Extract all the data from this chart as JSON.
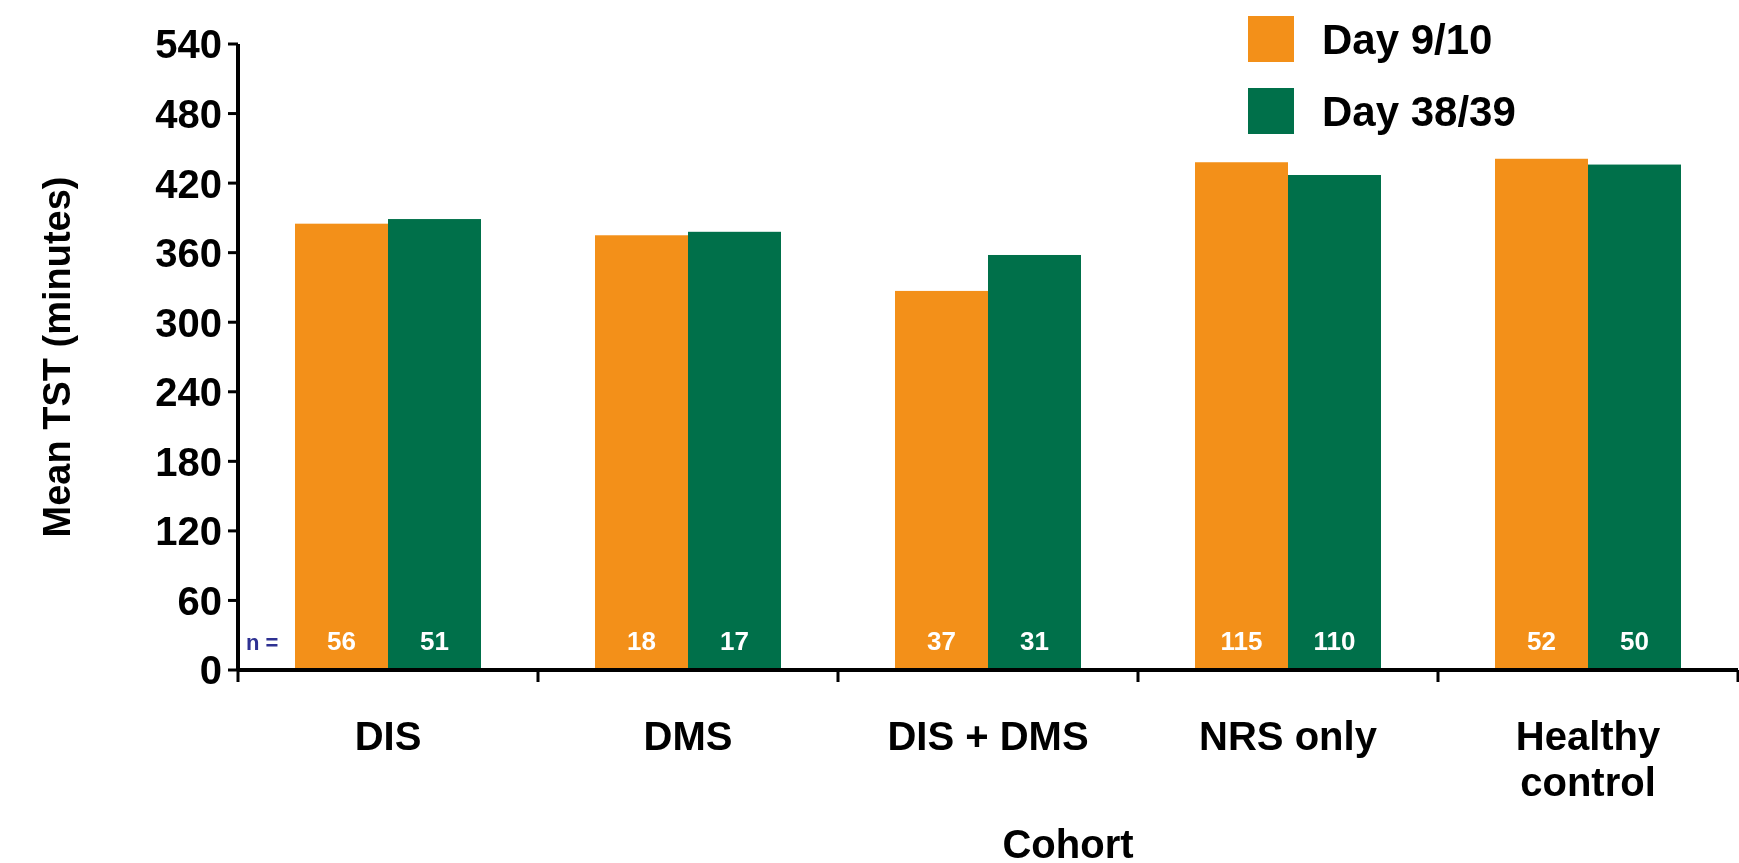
{
  "chart_data": {
    "type": "bar",
    "xlabel": "Cohort",
    "ylabel": "Mean TST (minutes)",
    "categories": [
      "DIS",
      "DMS",
      "DIS + DMS",
      "NRS only",
      "Healthy control"
    ],
    "series": [
      {
        "name": "Day 9/10",
        "color": "#f39019",
        "values": [
          385,
          375,
          327,
          438,
          441
        ]
      },
      {
        "name": "Day 38/39",
        "color": "#00704a",
        "values": [
          389,
          378,
          358,
          427,
          436
        ]
      }
    ],
    "ylim": [
      0,
      540
    ],
    "yticks": [
      0,
      60,
      120,
      180,
      240,
      300,
      360,
      420,
      480,
      540
    ],
    "legend": "top right",
    "grid": false,
    "annotations": [
      "n =",
      {
        "text": "56",
        "x": "DIS",
        "y": 0
      },
      {
        "text": "51",
        "x": "DIS",
        "y": 0
      },
      {
        "text": "18",
        "x": "DMS",
        "y": 0
      },
      {
        "text": "17",
        "x": "DMS",
        "y": 0
      },
      {
        "text": "37",
        "x": "DIS + DMS",
        "y": 0
      },
      {
        "text": "31",
        "x": "DIS + DMS",
        "y": 0
      },
      {
        "text": "115",
        "x": "NRS only",
        "y": 0
      },
      {
        "text": "110",
        "x": "NRS only",
        "y": 0
      },
      {
        "text": "52",
        "x": "Healthy control",
        "y": 0
      },
      {
        "text": "50",
        "x": "Healthy control",
        "y": 0
      }
    ]
  }
}
